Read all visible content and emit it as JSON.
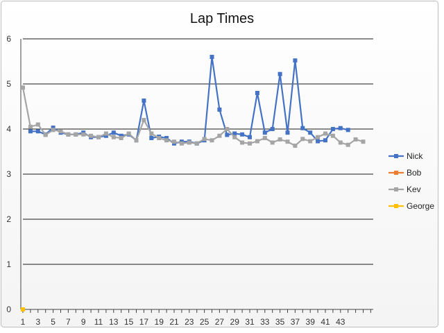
{
  "chart_data": {
    "type": "line",
    "title": "Lap Times",
    "xlabel": "",
    "ylabel": "",
    "ylim": [
      0,
      6
    ],
    "yticks": [
      0,
      1,
      2,
      3,
      4,
      5,
      6
    ],
    "xlim": [
      1,
      47
    ],
    "xtick_labels": [
      1,
      3,
      5,
      7,
      9,
      11,
      13,
      15,
      17,
      19,
      21,
      23,
      25,
      27,
      29,
      31,
      33,
      35,
      37,
      39,
      41,
      43
    ],
    "grid": "horizontal",
    "legend_position": "right",
    "series": [
      {
        "name": "Nick",
        "color": "#4472C4",
        "marker": "square",
        "x": [
          2,
          3,
          4,
          5,
          6,
          7,
          8,
          9,
          10,
          11,
          12,
          13,
          14,
          15,
          16,
          17,
          18,
          19,
          20,
          21,
          22,
          23,
          24,
          25,
          26,
          27,
          28,
          29,
          30,
          31,
          32,
          33,
          34,
          35,
          36,
          37,
          38,
          39,
          40,
          41,
          42,
          43,
          44
        ],
        "values": [
          3.95,
          3.95,
          3.88,
          4.03,
          3.92,
          3.88,
          3.88,
          3.92,
          3.82,
          3.82,
          3.85,
          3.92,
          3.85,
          3.88,
          3.75,
          4.63,
          3.8,
          3.83,
          3.8,
          3.68,
          3.72,
          3.72,
          3.68,
          3.75,
          5.6,
          4.43,
          3.87,
          3.9,
          3.88,
          3.82,
          4.8,
          3.92,
          4.0,
          5.22,
          3.92,
          5.52,
          4.02,
          3.92,
          3.73,
          3.75,
          4.0,
          4.02,
          3.98
        ]
      },
      {
        "name": "Bob",
        "color": "#ED7D31",
        "marker": "square",
        "x": [],
        "values": []
      },
      {
        "name": "Kev",
        "color": "#A5A5A5",
        "marker": "square",
        "x": [
          1,
          2,
          3,
          4,
          5,
          6,
          7,
          8,
          9,
          10,
          11,
          12,
          13,
          14,
          15,
          16,
          17,
          18,
          19,
          20,
          21,
          22,
          23,
          24,
          25,
          26,
          27,
          28,
          29,
          30,
          31,
          32,
          33,
          34,
          35,
          36,
          37,
          38,
          39,
          40,
          41,
          42,
          43,
          44,
          45,
          46
        ],
        "values": [
          4.92,
          4.05,
          4.1,
          3.87,
          3.98,
          3.95,
          3.88,
          3.88,
          3.88,
          3.85,
          3.82,
          3.9,
          3.82,
          3.8,
          3.9,
          3.75,
          4.2,
          3.9,
          3.8,
          3.75,
          3.72,
          3.68,
          3.7,
          3.68,
          3.78,
          3.75,
          3.85,
          4.0,
          3.82,
          3.7,
          3.68,
          3.73,
          3.8,
          3.7,
          3.77,
          3.72,
          3.63,
          3.78,
          3.73,
          3.82,
          3.9,
          3.85,
          3.7,
          3.65,
          3.77,
          3.72
        ]
      },
      {
        "name": "George",
        "color": "#FFC000",
        "marker": "square",
        "x": [
          1
        ],
        "values": [
          0
        ]
      }
    ]
  }
}
